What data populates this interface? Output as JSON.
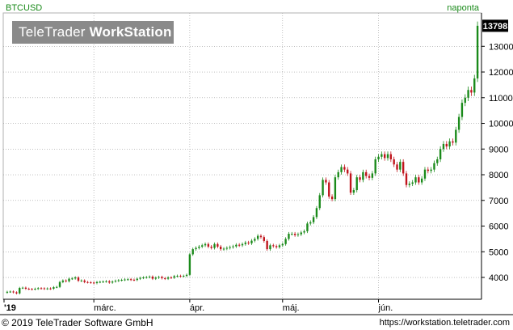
{
  "header": {
    "symbol": "BTCUSD",
    "period": "naponta"
  },
  "logo": {
    "part1": "TeleTrader ",
    "part2": "WorkStation"
  },
  "footer": {
    "copyright": "© 2019 TeleTrader Software GmbH",
    "url": "https://workstation.teletrader.com"
  },
  "chart_data": {
    "type": "candlestick",
    "title": "BTCUSD",
    "xlabel": "",
    "ylabel": "",
    "ylim": [
      3150,
      14300
    ],
    "y_ticks": [
      4000,
      5000,
      6000,
      7000,
      8000,
      9000,
      10000,
      11000,
      12000,
      13000
    ],
    "x_tick_labels": [
      {
        "label": "'19",
        "index": 0
      },
      {
        "label": "márc.",
        "index": 28
      },
      {
        "label": "ápr.",
        "index": 59
      },
      {
        "label": "máj.",
        "index": 89
      },
      {
        "label": "jún.",
        "index": 120
      }
    ],
    "last_value": "13798",
    "up_color": "#1a8a1a",
    "down_color": "#c0141c",
    "grid": true,
    "closes": [
      3440,
      3450,
      3420,
      3380,
      3590,
      3600,
      3560,
      3550,
      3540,
      3560,
      3580,
      3575,
      3560,
      3570,
      3560,
      3620,
      3630,
      3820,
      3880,
      3850,
      3950,
      3960,
      4000,
      3870,
      3880,
      3820,
      3810,
      3800,
      3780,
      3820,
      3830,
      3840,
      3850,
      3800,
      3840,
      3870,
      3890,
      3905,
      3920,
      3930,
      3910,
      3900,
      3950,
      3980,
      4000,
      4010,
      4030,
      3950,
      3990,
      4020,
      3970,
      3950,
      4000,
      3990,
      4050,
      4060,
      4050,
      4060,
      4100,
      4900,
      5100,
      5150,
      5200,
      5250,
      5300,
      5200,
      5150,
      5300,
      5200,
      5100,
      5120,
      5150,
      5180,
      5210,
      5270,
      5250,
      5300,
      5360,
      5330,
      5430,
      5500,
      5620,
      5570,
      5420,
      5100,
      5250,
      5220,
      5180,
      5250,
      5300,
      5500,
      5700,
      5700,
      5650,
      5680,
      5750,
      5800,
      6100,
      6150,
      6350,
      6700,
      7200,
      7800,
      7700,
      7150,
      7050,
      7900,
      8100,
      8300,
      8200,
      8050,
      7300,
      7400,
      7900,
      7800,
      8100,
      7950,
      7880,
      8050,
      8600,
      8700,
      8800,
      8650,
      8800,
      8600,
      8400,
      8200,
      8500,
      8050,
      7600,
      7650,
      7700,
      7900,
      7700,
      7850,
      8200,
      8150,
      8200,
      8450,
      8600,
      9000,
      9200,
      9100,
      9300,
      9250,
      9750,
      10250,
      10800,
      11000,
      11300,
      11200,
      11750,
      13800
    ]
  }
}
